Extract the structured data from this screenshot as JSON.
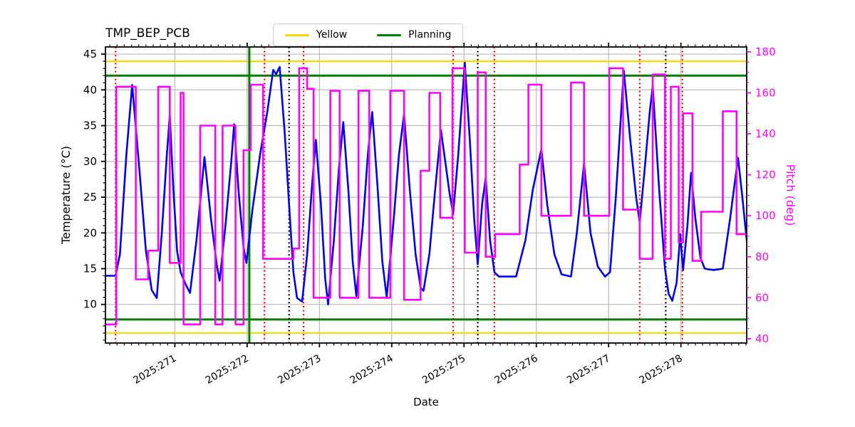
{
  "title": "TMP_BEP_PCB",
  "legend": {
    "items": [
      {
        "label": "Yellow",
        "color": "#FFD700"
      },
      {
        "label": "Planning",
        "color": "#008000"
      }
    ]
  },
  "chart_data": {
    "type": "line",
    "title": "TMP_BEP_PCB",
    "xlabel": "Date",
    "grid": true,
    "legend_loc": "upper center",
    "xlim": [
      270.04,
      278.91
    ],
    "x_tick_values": [
      271,
      272,
      273,
      274,
      275,
      276,
      277,
      278
    ],
    "x_tick_labels": [
      "2025:271",
      "2025:272",
      "2025:273",
      "2025:274",
      "2025:275",
      "2025:276",
      "2025:277",
      "2025:278"
    ],
    "x_minor_interval": 0.1,
    "left_axis": {
      "label": "Temperature (°C)",
      "lim": [
        4.6,
        46.0
      ],
      "ticks": [
        10,
        15,
        20,
        25,
        30,
        35,
        40,
        45
      ],
      "minor_interval": 1,
      "color": "#000000"
    },
    "right_axis": {
      "label": "Pitch (deg)",
      "lim": [
        37.9,
        182.4
      ],
      "ticks": [
        40,
        60,
        80,
        100,
        120,
        140,
        160,
        180
      ],
      "minor_interval": 5,
      "color": "#FF00FF"
    },
    "hlines": [
      {
        "name": "yellow-upper-limit",
        "axis": "left",
        "y": 44.0,
        "color": "#FFD700",
        "width": 2.2,
        "style": "solid"
      },
      {
        "name": "yellow-lower-limit",
        "axis": "left",
        "y": 6.0,
        "color": "#FFD700",
        "width": 2.2,
        "style": "solid"
      },
      {
        "name": "planning-upper-limit",
        "axis": "left",
        "y": 42.0,
        "color": "#008000",
        "width": 3,
        "style": "solid"
      },
      {
        "name": "planning-lower-limit",
        "axis": "left",
        "y": 7.9,
        "color": "#008000",
        "width": 3,
        "style": "solid"
      }
    ],
    "vlines": [
      {
        "name": "planning-event",
        "x": 272.03,
        "color": "#008000",
        "width": 3,
        "style": "solid"
      },
      {
        "name": "red-event-1",
        "x": 270.18,
        "color": "#FF0000",
        "width": 2.2,
        "style": "dotted"
      },
      {
        "name": "red-event-2",
        "x": 272.24,
        "color": "#FF0000",
        "width": 2.2,
        "style": "dotted"
      },
      {
        "name": "red-event-3",
        "x": 272.78,
        "color": "#FF0000",
        "width": 2.2,
        "style": "dotted"
      },
      {
        "name": "red-event-4",
        "x": 274.85,
        "color": "#FF0000",
        "width": 2.2,
        "style": "dotted"
      },
      {
        "name": "red-event-5",
        "x": 275.42,
        "color": "#FF0000",
        "width": 2.2,
        "style": "dotted"
      },
      {
        "name": "red-event-6",
        "x": 277.43,
        "color": "#FF0000",
        "width": 2.2,
        "style": "dotted"
      },
      {
        "name": "red-event-7",
        "x": 278.02,
        "color": "#FF0000",
        "width": 2.2,
        "style": "dotted"
      },
      {
        "name": "black-event-1",
        "x": 272.58,
        "color": "#000000",
        "width": 2.2,
        "style": "dotted"
      },
      {
        "name": "black-event-2",
        "x": 275.19,
        "color": "#000000",
        "width": 2.2,
        "style": "dotted"
      },
      {
        "name": "black-event-3",
        "x": 277.79,
        "color": "#000000",
        "width": 2.2,
        "style": "dotted"
      }
    ],
    "series": [
      {
        "name": "temperature",
        "axis": "left",
        "color": "#0000EF",
        "width": 2.6,
        "style": "linear",
        "points": [
          [
            270.04,
            14.0
          ],
          [
            270.18,
            14.0
          ],
          [
            270.24,
            17.0
          ],
          [
            270.33,
            31.0
          ],
          [
            270.41,
            40.7
          ],
          [
            270.5,
            30.0
          ],
          [
            270.6,
            17.5
          ],
          [
            270.68,
            12.0
          ],
          [
            270.75,
            10.9
          ],
          [
            270.82,
            20.0
          ],
          [
            270.89,
            31.0
          ],
          [
            270.93,
            36.4
          ],
          [
            270.98,
            26.0
          ],
          [
            271.03,
            17.5
          ],
          [
            271.08,
            14.5
          ],
          [
            271.15,
            12.8
          ],
          [
            271.21,
            11.6
          ],
          [
            271.3,
            19.0
          ],
          [
            271.41,
            30.6
          ],
          [
            271.5,
            22.0
          ],
          [
            271.58,
            15.5
          ],
          [
            271.62,
            13.3
          ],
          [
            271.7,
            21.0
          ],
          [
            271.78,
            30.0
          ],
          [
            271.82,
            35.2
          ],
          [
            271.88,
            26.0
          ],
          [
            271.95,
            18.0
          ],
          [
            271.99,
            15.8
          ],
          [
            272.07,
            23.0
          ],
          [
            272.18,
            31.0
          ],
          [
            272.28,
            37.0
          ],
          [
            272.36,
            42.8
          ],
          [
            272.4,
            42.2
          ],
          [
            272.45,
            43.2
          ],
          [
            272.52,
            34.0
          ],
          [
            272.58,
            24.0
          ],
          [
            272.64,
            14.5
          ],
          [
            272.69,
            10.9
          ],
          [
            272.76,
            10.4
          ],
          [
            272.83,
            17.0
          ],
          [
            272.9,
            27.0
          ],
          [
            272.95,
            33.0
          ],
          [
            273.02,
            24.0
          ],
          [
            273.08,
            13.5
          ],
          [
            273.12,
            10.0
          ],
          [
            273.2,
            19.0
          ],
          [
            273.27,
            29.0
          ],
          [
            273.33,
            35.5
          ],
          [
            273.4,
            26.0
          ],
          [
            273.46,
            16.0
          ],
          [
            273.51,
            11.2
          ],
          [
            273.6,
            21.0
          ],
          [
            273.67,
            31.0
          ],
          [
            273.73,
            36.9
          ],
          [
            273.8,
            27.0
          ],
          [
            273.87,
            16.0
          ],
          [
            273.93,
            11.0
          ],
          [
            274.02,
            21.0
          ],
          [
            274.1,
            31.0
          ],
          [
            274.17,
            36.6
          ],
          [
            274.25,
            26.0
          ],
          [
            274.33,
            17.0
          ],
          [
            274.4,
            12.3
          ],
          [
            274.44,
            11.9
          ],
          [
            274.52,
            17.0
          ],
          [
            274.6,
            26.0
          ],
          [
            274.68,
            34.4
          ],
          [
            274.74,
            30.0
          ],
          [
            274.8,
            25.5
          ],
          [
            274.85,
            22.7
          ],
          [
            274.92,
            31.0
          ],
          [
            275.01,
            43.8
          ],
          [
            275.08,
            33.0
          ],
          [
            275.14,
            22.0
          ],
          [
            275.19,
            15.6
          ],
          [
            275.25,
            24.0
          ],
          [
            275.3,
            27.7
          ],
          [
            275.36,
            19.0
          ],
          [
            275.42,
            14.5
          ],
          [
            275.48,
            13.9
          ],
          [
            275.72,
            13.9
          ],
          [
            275.85,
            19.0
          ],
          [
            275.95,
            26.0
          ],
          [
            276.07,
            31.7
          ],
          [
            276.15,
            24.0
          ],
          [
            276.25,
            17.0
          ],
          [
            276.35,
            14.2
          ],
          [
            276.48,
            13.9
          ],
          [
            276.56,
            20.0
          ],
          [
            276.66,
            29.7
          ],
          [
            276.75,
            20.0
          ],
          [
            276.85,
            15.3
          ],
          [
            276.95,
            13.9
          ],
          [
            277.02,
            14.5
          ],
          [
            277.1,
            25.0
          ],
          [
            277.21,
            42.7
          ],
          [
            277.3,
            33.0
          ],
          [
            277.38,
            25.0
          ],
          [
            277.43,
            21.5
          ],
          [
            277.5,
            29.0
          ],
          [
            277.57,
            37.0
          ],
          [
            277.61,
            40.5
          ],
          [
            277.7,
            26.0
          ],
          [
            277.78,
            15.0
          ],
          [
            277.83,
            11.5
          ],
          [
            277.88,
            10.5
          ],
          [
            277.94,
            13.0
          ],
          [
            277.99,
            19.8
          ],
          [
            278.03,
            14.8
          ],
          [
            278.09,
            21.0
          ],
          [
            278.14,
            28.4
          ],
          [
            278.2,
            22.0
          ],
          [
            278.27,
            16.5
          ],
          [
            278.33,
            15.0
          ],
          [
            278.45,
            14.8
          ],
          [
            278.58,
            15.0
          ],
          [
            278.68,
            22.0
          ],
          [
            278.79,
            30.5
          ],
          [
            278.85,
            25.0
          ],
          [
            278.91,
            19.0
          ]
        ]
      },
      {
        "name": "pitch",
        "axis": "right",
        "color": "#FF00FF",
        "width": 2.6,
        "style": "step-post",
        "points": [
          [
            270.04,
            47
          ],
          [
            270.19,
            163
          ],
          [
            270.46,
            69
          ],
          [
            270.63,
            83
          ],
          [
            270.77,
            163
          ],
          [
            270.93,
            77
          ],
          [
            271.08,
            160
          ],
          [
            271.12,
            47
          ],
          [
            271.35,
            144
          ],
          [
            271.56,
            47
          ],
          [
            271.66,
            144
          ],
          [
            271.84,
            47
          ],
          [
            271.95,
            132
          ],
          [
            272.05,
            164
          ],
          [
            272.22,
            79
          ],
          [
            272.64,
            84
          ],
          [
            272.72,
            172
          ],
          [
            272.83,
            162
          ],
          [
            272.92,
            60
          ],
          [
            273.15,
            161
          ],
          [
            273.28,
            60
          ],
          [
            273.54,
            161
          ],
          [
            273.69,
            60
          ],
          [
            273.98,
            161
          ],
          [
            274.17,
            59
          ],
          [
            274.4,
            122
          ],
          [
            274.52,
            160
          ],
          [
            274.67,
            99
          ],
          [
            274.84,
            172
          ],
          [
            275.01,
            82
          ],
          [
            275.19,
            170
          ],
          [
            275.3,
            80
          ],
          [
            275.43,
            91
          ],
          [
            275.77,
            125
          ],
          [
            275.89,
            164
          ],
          [
            276.07,
            100
          ],
          [
            276.48,
            165
          ],
          [
            276.66,
            100
          ],
          [
            277.01,
            172
          ],
          [
            277.2,
            103
          ],
          [
            277.43,
            79
          ],
          [
            277.61,
            169
          ],
          [
            277.78,
            79
          ],
          [
            277.86,
            163
          ],
          [
            277.97,
            87
          ],
          [
            278.03,
            150
          ],
          [
            278.16,
            78
          ],
          [
            278.28,
            102
          ],
          [
            278.58,
            151
          ],
          [
            278.77,
            91
          ],
          [
            278.91,
            91
          ]
        ]
      }
    ]
  }
}
